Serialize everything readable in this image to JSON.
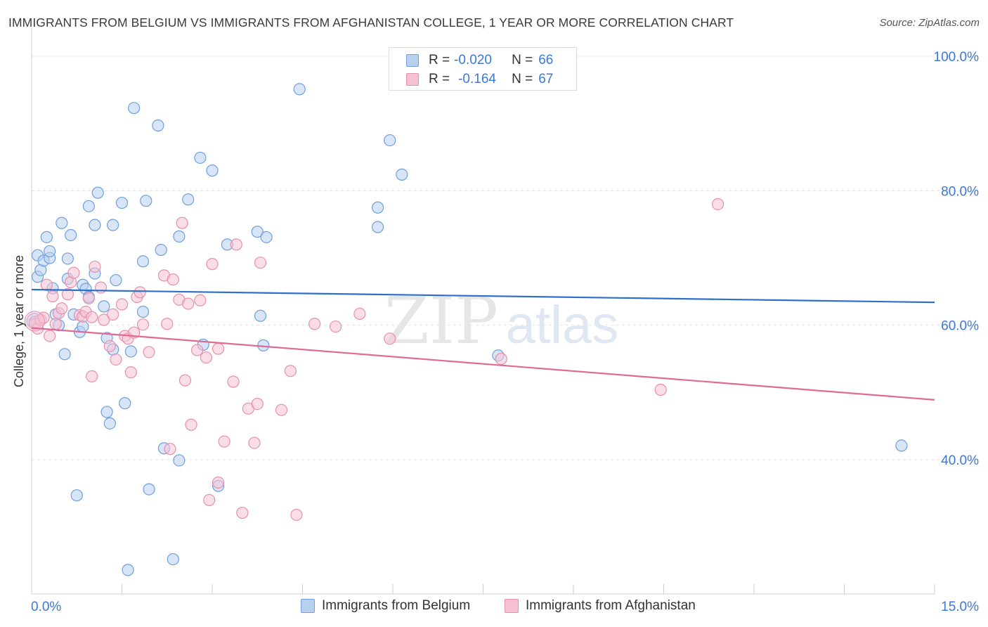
{
  "title": "IMMIGRANTS FROM BELGIUM VS IMMIGRANTS FROM AFGHANISTAN COLLEGE, 1 YEAR OR MORE CORRELATION CHART",
  "source": "Source: ZipAtlas.com",
  "watermark": {
    "zip": "ZIP",
    "atlas": "atlas"
  },
  "legend": {
    "rows": [
      {
        "r_label": "R =",
        "r_value": "-0.020",
        "n_label": "N =",
        "n_value": "66"
      },
      {
        "r_label": "R =",
        "r_value": "-0.164",
        "n_label": "N =",
        "n_value": "67"
      }
    ]
  },
  "colors": {
    "belgium_fill": "#b8d0f0",
    "belgium_stroke": "#6f9fdc",
    "belgium_line": "#2f6fcc",
    "afghan_fill": "#f6c2d3",
    "afghan_stroke": "#e690ac",
    "afghan_line": "#e06a96",
    "axis_label": "#3b78d8",
    "grid": "#e3e3e3"
  },
  "chart_data": {
    "type": "scatter",
    "title": "IMMIGRANTS FROM BELGIUM VS IMMIGRANTS FROM AFGHANISTAN COLLEGE, 1 YEAR OR MORE CORRELATION CHART",
    "xlabel": "",
    "ylabel": "College, 1 year or more",
    "xlim": [
      0,
      15
    ],
    "ylim": [
      20,
      103
    ],
    "x_ticks": [
      0,
      1.5,
      3,
      4.5,
      6,
      7.5,
      9,
      10.5,
      12,
      13.5,
      15
    ],
    "x_tick_labels": [
      "0.0%",
      "15.0%"
    ],
    "y_ticks": [
      40,
      60,
      80,
      100
    ],
    "y_tick_labels": [
      "40.0%",
      "60.0%",
      "80.0%",
      "100.0%"
    ],
    "grid": true,
    "series": [
      {
        "name": "Immigrants from Belgium",
        "trend": [
          [
            0,
            65.3
          ],
          [
            15,
            63.4
          ]
        ],
        "points": [
          [
            0.05,
            60.5
          ],
          [
            0.1,
            67.2
          ],
          [
            0.1,
            70.4
          ],
          [
            0.15,
            68.2
          ],
          [
            0.2,
            69.6
          ],
          [
            0.25,
            73.1
          ],
          [
            0.3,
            70.0
          ],
          [
            0.3,
            71.0
          ],
          [
            0.35,
            65.5
          ],
          [
            0.4,
            61.6
          ],
          [
            0.45,
            60.0
          ],
          [
            0.5,
            75.2
          ],
          [
            0.55,
            55.7
          ],
          [
            0.6,
            69.9
          ],
          [
            0.6,
            66.9
          ],
          [
            0.65,
            73.4
          ],
          [
            0.7,
            61.6
          ],
          [
            0.75,
            34.7
          ],
          [
            0.8,
            59.0
          ],
          [
            0.85,
            59.8
          ],
          [
            0.85,
            66.0
          ],
          [
            0.9,
            65.4
          ],
          [
            0.95,
            64.2
          ],
          [
            0.95,
            77.7
          ],
          [
            1.05,
            67.7
          ],
          [
            1.05,
            74.9
          ],
          [
            1.1,
            79.7
          ],
          [
            1.2,
            62.8
          ],
          [
            1.25,
            58.1
          ],
          [
            1.25,
            47.1
          ],
          [
            1.3,
            45.4
          ],
          [
            1.35,
            74.9
          ],
          [
            1.35,
            56.4
          ],
          [
            1.4,
            66.7
          ],
          [
            1.5,
            78.2
          ],
          [
            1.55,
            48.4
          ],
          [
            1.6,
            23.6
          ],
          [
            1.65,
            56.1
          ],
          [
            1.7,
            92.3
          ],
          [
            1.85,
            69.5
          ],
          [
            1.85,
            62.0
          ],
          [
            1.9,
            78.5
          ],
          [
            1.95,
            35.6
          ],
          [
            2.1,
            89.7
          ],
          [
            2.15,
            71.2
          ],
          [
            2.2,
            41.7
          ],
          [
            2.35,
            25.2
          ],
          [
            2.45,
            73.2
          ],
          [
            2.45,
            39.9
          ],
          [
            2.6,
            78.7
          ],
          [
            2.8,
            84.9
          ],
          [
            2.85,
            57.1
          ],
          [
            3.0,
            83.0
          ],
          [
            3.1,
            36.1
          ],
          [
            3.25,
            72.0
          ],
          [
            3.75,
            73.9
          ],
          [
            3.8,
            61.4
          ],
          [
            3.85,
            57.0
          ],
          [
            3.9,
            73.1
          ],
          [
            4.45,
            95.1
          ],
          [
            5.75,
            77.5
          ],
          [
            5.75,
            74.6
          ],
          [
            5.95,
            87.5
          ],
          [
            6.15,
            82.4
          ],
          [
            7.75,
            55.5
          ],
          [
            14.45,
            42.1
          ]
        ]
      },
      {
        "name": "Immigrants from Afghanistan",
        "trend": [
          [
            0,
            59.6
          ],
          [
            15,
            48.9
          ]
        ],
        "points": [
          [
            0.05,
            60.2
          ],
          [
            0.1,
            59.5
          ],
          [
            0.15,
            60.8
          ],
          [
            0.2,
            61.1
          ],
          [
            0.25,
            66.0
          ],
          [
            0.3,
            58.4
          ],
          [
            0.35,
            64.3
          ],
          [
            0.4,
            60.2
          ],
          [
            0.45,
            61.8
          ],
          [
            0.5,
            62.5
          ],
          [
            0.6,
            64.6
          ],
          [
            0.65,
            66.4
          ],
          [
            0.7,
            67.8
          ],
          [
            0.8,
            61.5
          ],
          [
            0.85,
            61.3
          ],
          [
            0.9,
            62.0
          ],
          [
            0.95,
            64.0
          ],
          [
            1.0,
            61.2
          ],
          [
            1.0,
            52.4
          ],
          [
            1.05,
            68.7
          ],
          [
            1.15,
            65.6
          ],
          [
            1.2,
            60.8
          ],
          [
            1.3,
            56.9
          ],
          [
            1.35,
            61.6
          ],
          [
            1.4,
            54.9
          ],
          [
            1.5,
            63.1
          ],
          [
            1.55,
            58.4
          ],
          [
            1.6,
            58.0
          ],
          [
            1.65,
            53.0
          ],
          [
            1.7,
            58.9
          ],
          [
            1.75,
            64.2
          ],
          [
            1.8,
            64.9
          ],
          [
            1.85,
            60.1
          ],
          [
            1.95,
            56.0
          ],
          [
            2.2,
            67.4
          ],
          [
            2.25,
            60.2
          ],
          [
            2.3,
            41.6
          ],
          [
            2.35,
            66.8
          ],
          [
            2.45,
            63.8
          ],
          [
            2.5,
            75.2
          ],
          [
            2.55,
            51.8
          ],
          [
            2.6,
            63.2
          ],
          [
            2.65,
            45.2
          ],
          [
            2.75,
            56.3
          ],
          [
            2.8,
            63.7
          ],
          [
            2.9,
            55.2
          ],
          [
            2.95,
            34.0
          ],
          [
            3.0,
            69.1
          ],
          [
            3.1,
            36.6
          ],
          [
            3.1,
            56.5
          ],
          [
            3.2,
            42.7
          ],
          [
            3.35,
            51.6
          ],
          [
            3.4,
            72.0
          ],
          [
            3.5,
            32.1
          ],
          [
            3.6,
            47.6
          ],
          [
            3.7,
            42.5
          ],
          [
            3.75,
            48.3
          ],
          [
            3.8,
            69.3
          ],
          [
            4.15,
            47.4
          ],
          [
            4.3,
            53.2
          ],
          [
            4.4,
            31.8
          ],
          [
            4.7,
            60.2
          ],
          [
            5.05,
            59.8
          ],
          [
            5.45,
            61.7
          ],
          [
            5.95,
            58.0
          ],
          [
            7.8,
            55.0
          ],
          [
            10.45,
            50.4
          ],
          [
            11.4,
            78.0
          ]
        ]
      }
    ]
  },
  "bottom_legend": [
    "Immigrants from Belgium",
    "Immigrants from Afghanistan"
  ]
}
